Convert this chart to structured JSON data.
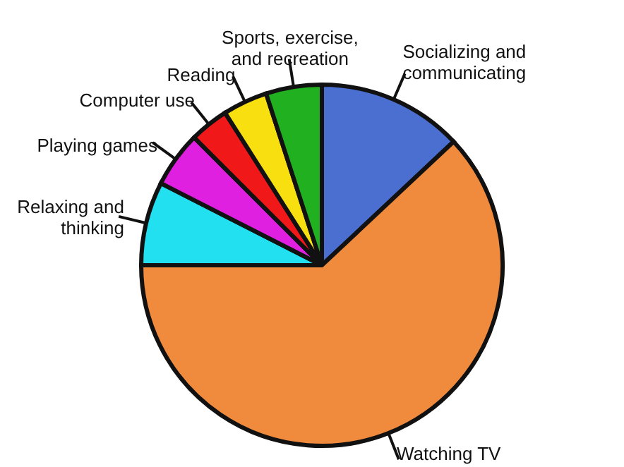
{
  "chart_data": {
    "type": "pie",
    "categories": [
      "Socializing and communicating",
      "Watching TV",
      "Relaxing and thinking",
      "Playing games",
      "Computer use",
      "Reading",
      "Sports, exercise, and recreation"
    ],
    "values": [
      13,
      62,
      7.5,
      5,
      3.5,
      4,
      5
    ],
    "colors": [
      "#4a6fd0",
      "#f08a3c",
      "#22e0f0",
      "#e020e0",
      "#f01818",
      "#f8e010",
      "#20b020"
    ],
    "legend": false
  }
}
